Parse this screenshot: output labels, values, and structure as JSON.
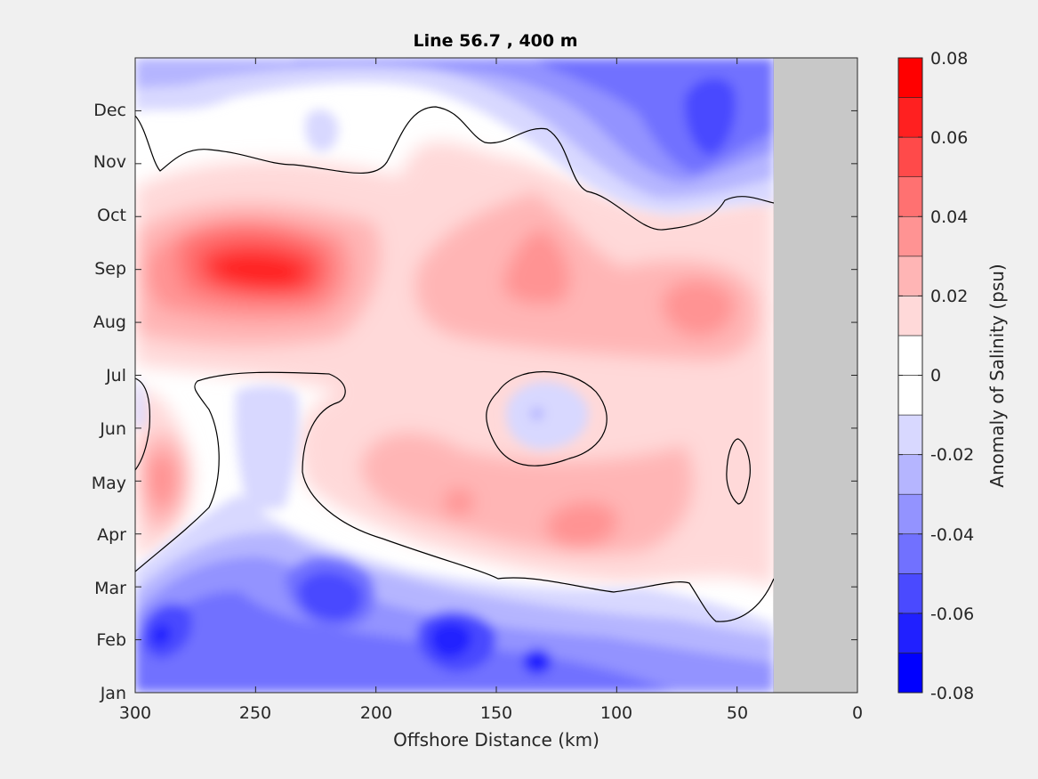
{
  "chart_data": {
    "type": "heatmap",
    "title": "Line 56.7 , 400 m",
    "xlabel": "Offshore Distance (km)",
    "ylabel": "",
    "xlim": [
      300,
      0
    ],
    "x_ticks": [
      "300",
      "250",
      "200",
      "150",
      "100",
      "50",
      "0"
    ],
    "y_ticks": [
      "Jan",
      "Feb",
      "Mar",
      "Apr",
      "May",
      "Jun",
      "Jul",
      "Aug",
      "Sep",
      "Oct",
      "Nov",
      "Dec"
    ],
    "colorbar": {
      "label": "Anomaly of Salinity (psu)",
      "range": [
        -0.08,
        0.08
      ],
      "step": 0.01,
      "tick_labels": [
        "0.08",
        "0.06",
        "0.04",
        "0.02",
        "0",
        "-0.02",
        "-0.04",
        "-0.06",
        "-0.08"
      ],
      "colors": [
        "#0000ff",
        "#2020ff",
        "#4a4aff",
        "#7171ff",
        "#9393ff",
        "#b5b5ff",
        "#d8d8ff",
        "#ffffff",
        "#ffffff",
        "#ffd9d9",
        "#ffb5b5",
        "#ff9393",
        "#ff7171",
        "#ff4a4a",
        "#ff2020",
        "#ff0000"
      ]
    },
    "missing_data_region_km": [
      35,
      0
    ],
    "missing_data_color": "#c8c8c8",
    "zero_contour": true,
    "features": [
      {
        "month": 9.0,
        "km": 245,
        "value": 0.065
      },
      {
        "month": 8.5,
        "km": 130,
        "value": 0.045
      },
      {
        "month": 8.3,
        "km": 62,
        "value": 0.045
      },
      {
        "month": 4.1,
        "km": 128,
        "value": 0.035
      },
      {
        "month": 4.5,
        "km": 165,
        "value": 0.03
      },
      {
        "month": 5.0,
        "km": 289,
        "value": 0.035
      },
      {
        "month": 1.8,
        "km": 155,
        "value": -0.06
      },
      {
        "month": 1.4,
        "km": 133,
        "value": -0.065
      },
      {
        "month": 2.6,
        "km": 225,
        "value": -0.05
      },
      {
        "month": 1.5,
        "km": 285,
        "value": -0.065
      },
      {
        "month": 11.1,
        "km": 63,
        "value": -0.05
      },
      {
        "month": 6.2,
        "km": 133,
        "value": -0.02
      }
    ]
  }
}
